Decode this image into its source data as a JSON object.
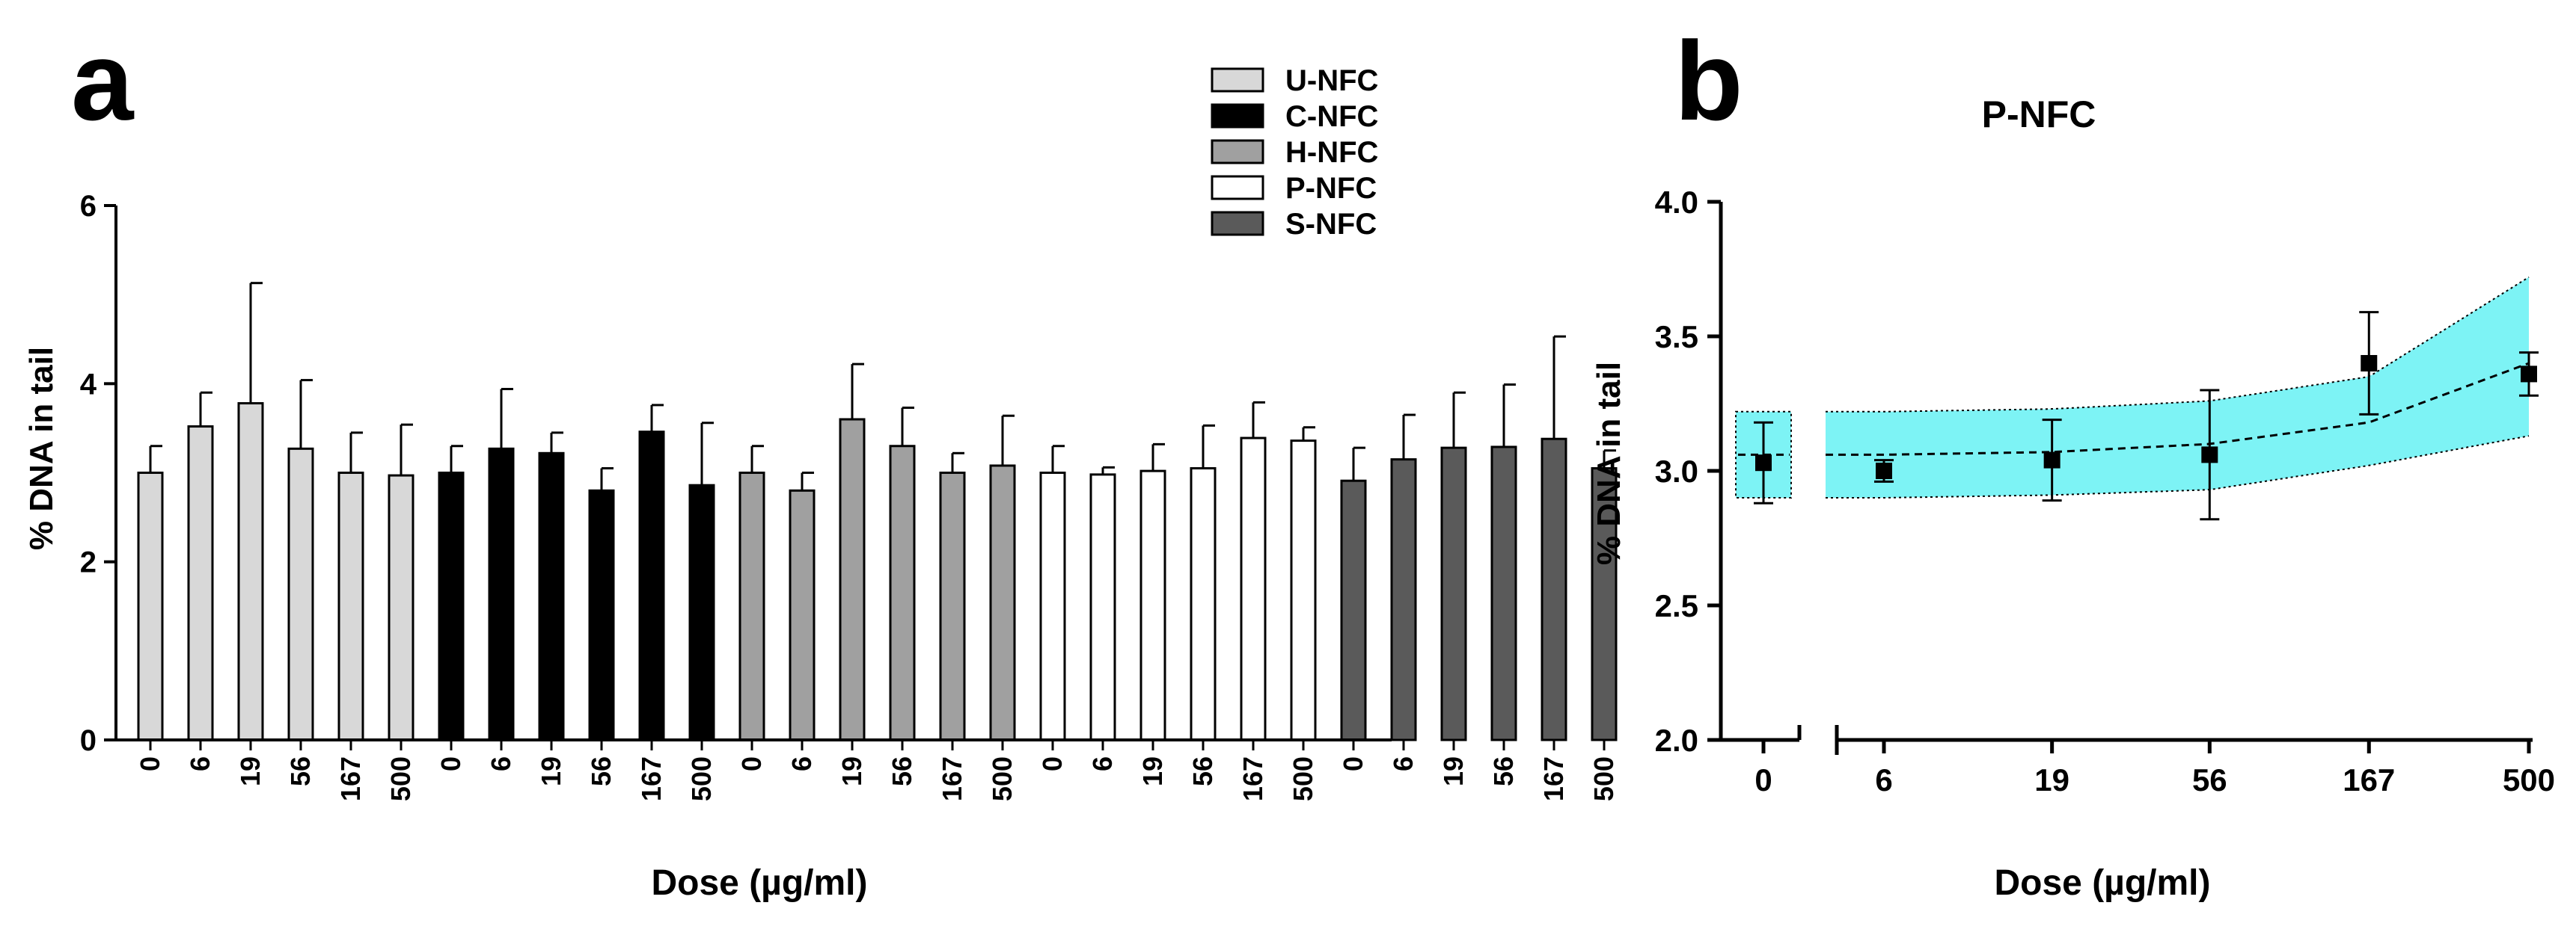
{
  "colors": {
    "series": [
      "#d8d8d8",
      "#000000",
      "#a0a0a0",
      "#ffffff",
      "#5a5a5a"
    ],
    "band": "#7df3f5",
    "axis": "#000000"
  },
  "chart_data": [
    {
      "panel_label": "a",
      "type": "bar",
      "title": "",
      "xlabel": "Dose (µg/ml)",
      "ylabel": "% DNA in tail",
      "ylim": [
        0,
        6
      ],
      "yticks": [
        "0",
        "2",
        "4",
        "6"
      ],
      "categories": [
        "0",
        "6",
        "19",
        "56",
        "167",
        "500"
      ],
      "legend_position": "top-right",
      "grid": false,
      "series": [
        {
          "name": "U-NFC",
          "values": [
            3.0,
            3.52,
            3.78,
            3.27,
            3.0,
            2.97
          ],
          "errors": [
            0.3,
            0.38,
            1.35,
            0.77,
            0.45,
            0.57
          ]
        },
        {
          "name": "C-NFC",
          "values": [
            3.0,
            3.27,
            3.22,
            2.8,
            3.46,
            2.86
          ],
          "errors": [
            0.3,
            0.67,
            0.23,
            0.25,
            0.3,
            0.7
          ]
        },
        {
          "name": "H-NFC",
          "values": [
            3.0,
            2.8,
            3.6,
            3.3,
            3.0,
            3.08
          ],
          "errors": [
            0.3,
            0.2,
            0.62,
            0.43,
            0.22,
            0.56
          ]
        },
        {
          "name": "P-NFC",
          "values": [
            3.0,
            2.98,
            3.02,
            3.05,
            3.39,
            3.36
          ],
          "errors": [
            0.3,
            0.08,
            0.3,
            0.48,
            0.4,
            0.15
          ]
        },
        {
          "name": "S-NFC",
          "values": [
            2.91,
            3.15,
            3.28,
            3.29,
            3.38,
            3.05
          ],
          "errors": [
            0.37,
            0.5,
            0.62,
            0.7,
            1.15,
            0.2
          ]
        }
      ]
    },
    {
      "panel_label": "b",
      "type": "scatter",
      "title": "P-NFC",
      "xlabel": "Dose (µg/ml)",
      "ylabel": "% DNA in tail",
      "ylim": [
        2.0,
        4.0
      ],
      "yticks": [
        "2.0",
        "2.5",
        "3.0",
        "3.5",
        "4.0"
      ],
      "xticks": [
        "0",
        "6",
        "19",
        "56",
        "167",
        "500"
      ],
      "x_axis_break": true,
      "x_scale": "log (dose 0 shown on a separate broken segment)",
      "grid": false,
      "points": [
        {
          "x": 0,
          "y": 3.03,
          "err": 0.15
        },
        {
          "x": 6,
          "y": 3.0,
          "err": 0.04
        },
        {
          "x": 19,
          "y": 3.04,
          "err": 0.15
        },
        {
          "x": 56,
          "y": 3.06,
          "err": 0.24
        },
        {
          "x": 167,
          "y": 3.4,
          "err": 0.19
        },
        {
          "x": 500,
          "y": 3.36,
          "err": 0.08
        }
      ],
      "fit_line": [
        {
          "x": 0,
          "y": 3.06
        },
        {
          "x": 6,
          "y": 3.06
        },
        {
          "x": 19,
          "y": 3.07
        },
        {
          "x": 56,
          "y": 3.1
        },
        {
          "x": 167,
          "y": 3.18
        },
        {
          "x": 500,
          "y": 3.4
        }
      ],
      "confidence_band": [
        {
          "x": 0,
          "lower": 2.9,
          "upper": 3.22
        },
        {
          "x": 6,
          "lower": 2.9,
          "upper": 3.22
        },
        {
          "x": 19,
          "lower": 2.91,
          "upper": 3.23
        },
        {
          "x": 56,
          "lower": 2.93,
          "upper": 3.26
        },
        {
          "x": 167,
          "lower": 3.02,
          "upper": 3.35
        },
        {
          "x": 500,
          "lower": 3.13,
          "upper": 3.72
        }
      ]
    }
  ]
}
